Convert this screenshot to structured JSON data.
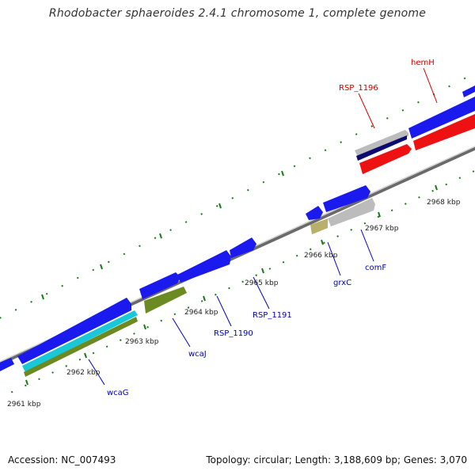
{
  "header": {
    "title": "Rhodobacter sphaeroides 2.4.1 chromosome 1, complete genome"
  },
  "footer": {
    "accession": "Accession: NC_007493",
    "summary": "Topology: circular; Length: 3,188,609 bp; Genes: 3,070"
  },
  "colors": {
    "backbone": "#8c8c8c",
    "tick": "#1a7a1a",
    "plus_label": "#cc0000",
    "minus_label": "#0000bb",
    "gene_blue": "#1a1aee",
    "gene_red": "#ee1111",
    "gene_grey": "#bcbcbc",
    "gene_navy": "#0a0a70",
    "gene_cyan": "#18c8d8",
    "gene_olive": "#6b8a22",
    "gene_khaki": "#b8b06a"
  },
  "map": {
    "ticks": [
      {
        "label": "2961 kbp"
      },
      {
        "label": "2962 kbp"
      },
      {
        "label": "2963 kbp"
      },
      {
        "label": "2964 kbp"
      },
      {
        "label": "2965 kbp"
      },
      {
        "label": "2966 kbp"
      },
      {
        "label": "2967 kbp"
      },
      {
        "label": "2968 kbp"
      }
    ],
    "genes": [
      {
        "label": "RSP_1196",
        "strand": "plus"
      },
      {
        "label": "hemH",
        "strand": "plus"
      },
      {
        "label": "wcaG",
        "strand": "minus"
      },
      {
        "label": "wcaJ",
        "strand": "minus"
      },
      {
        "label": "RSP_1190",
        "strand": "minus"
      },
      {
        "label": "RSP_1191",
        "strand": "minus"
      },
      {
        "label": "grxC",
        "strand": "minus"
      },
      {
        "label": "comF",
        "strand": "minus"
      }
    ]
  }
}
